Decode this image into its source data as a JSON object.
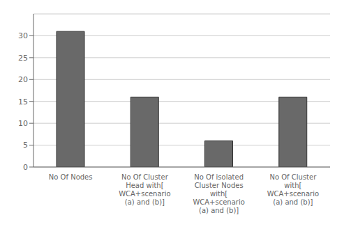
{
  "chart_data": {
    "type": "bar",
    "categories": [
      "No Of Nodes",
      "No Of Cluster\nHead with[\nWCA+scenario\n(a) and (b)]",
      "No Of isolated\nCluster Nodes\nwith[\nWCA+scenario\n(a) and (b)]",
      "No Of Cluster\nwith[\nWCA+scenario\n(a) and (b)]"
    ],
    "values": [
      31,
      16,
      6,
      16
    ],
    "color": "#696969",
    "ylim": [
      0,
      35
    ],
    "yticks": [
      0,
      5,
      10,
      15,
      20,
      25,
      30
    ],
    "grid": true
  }
}
